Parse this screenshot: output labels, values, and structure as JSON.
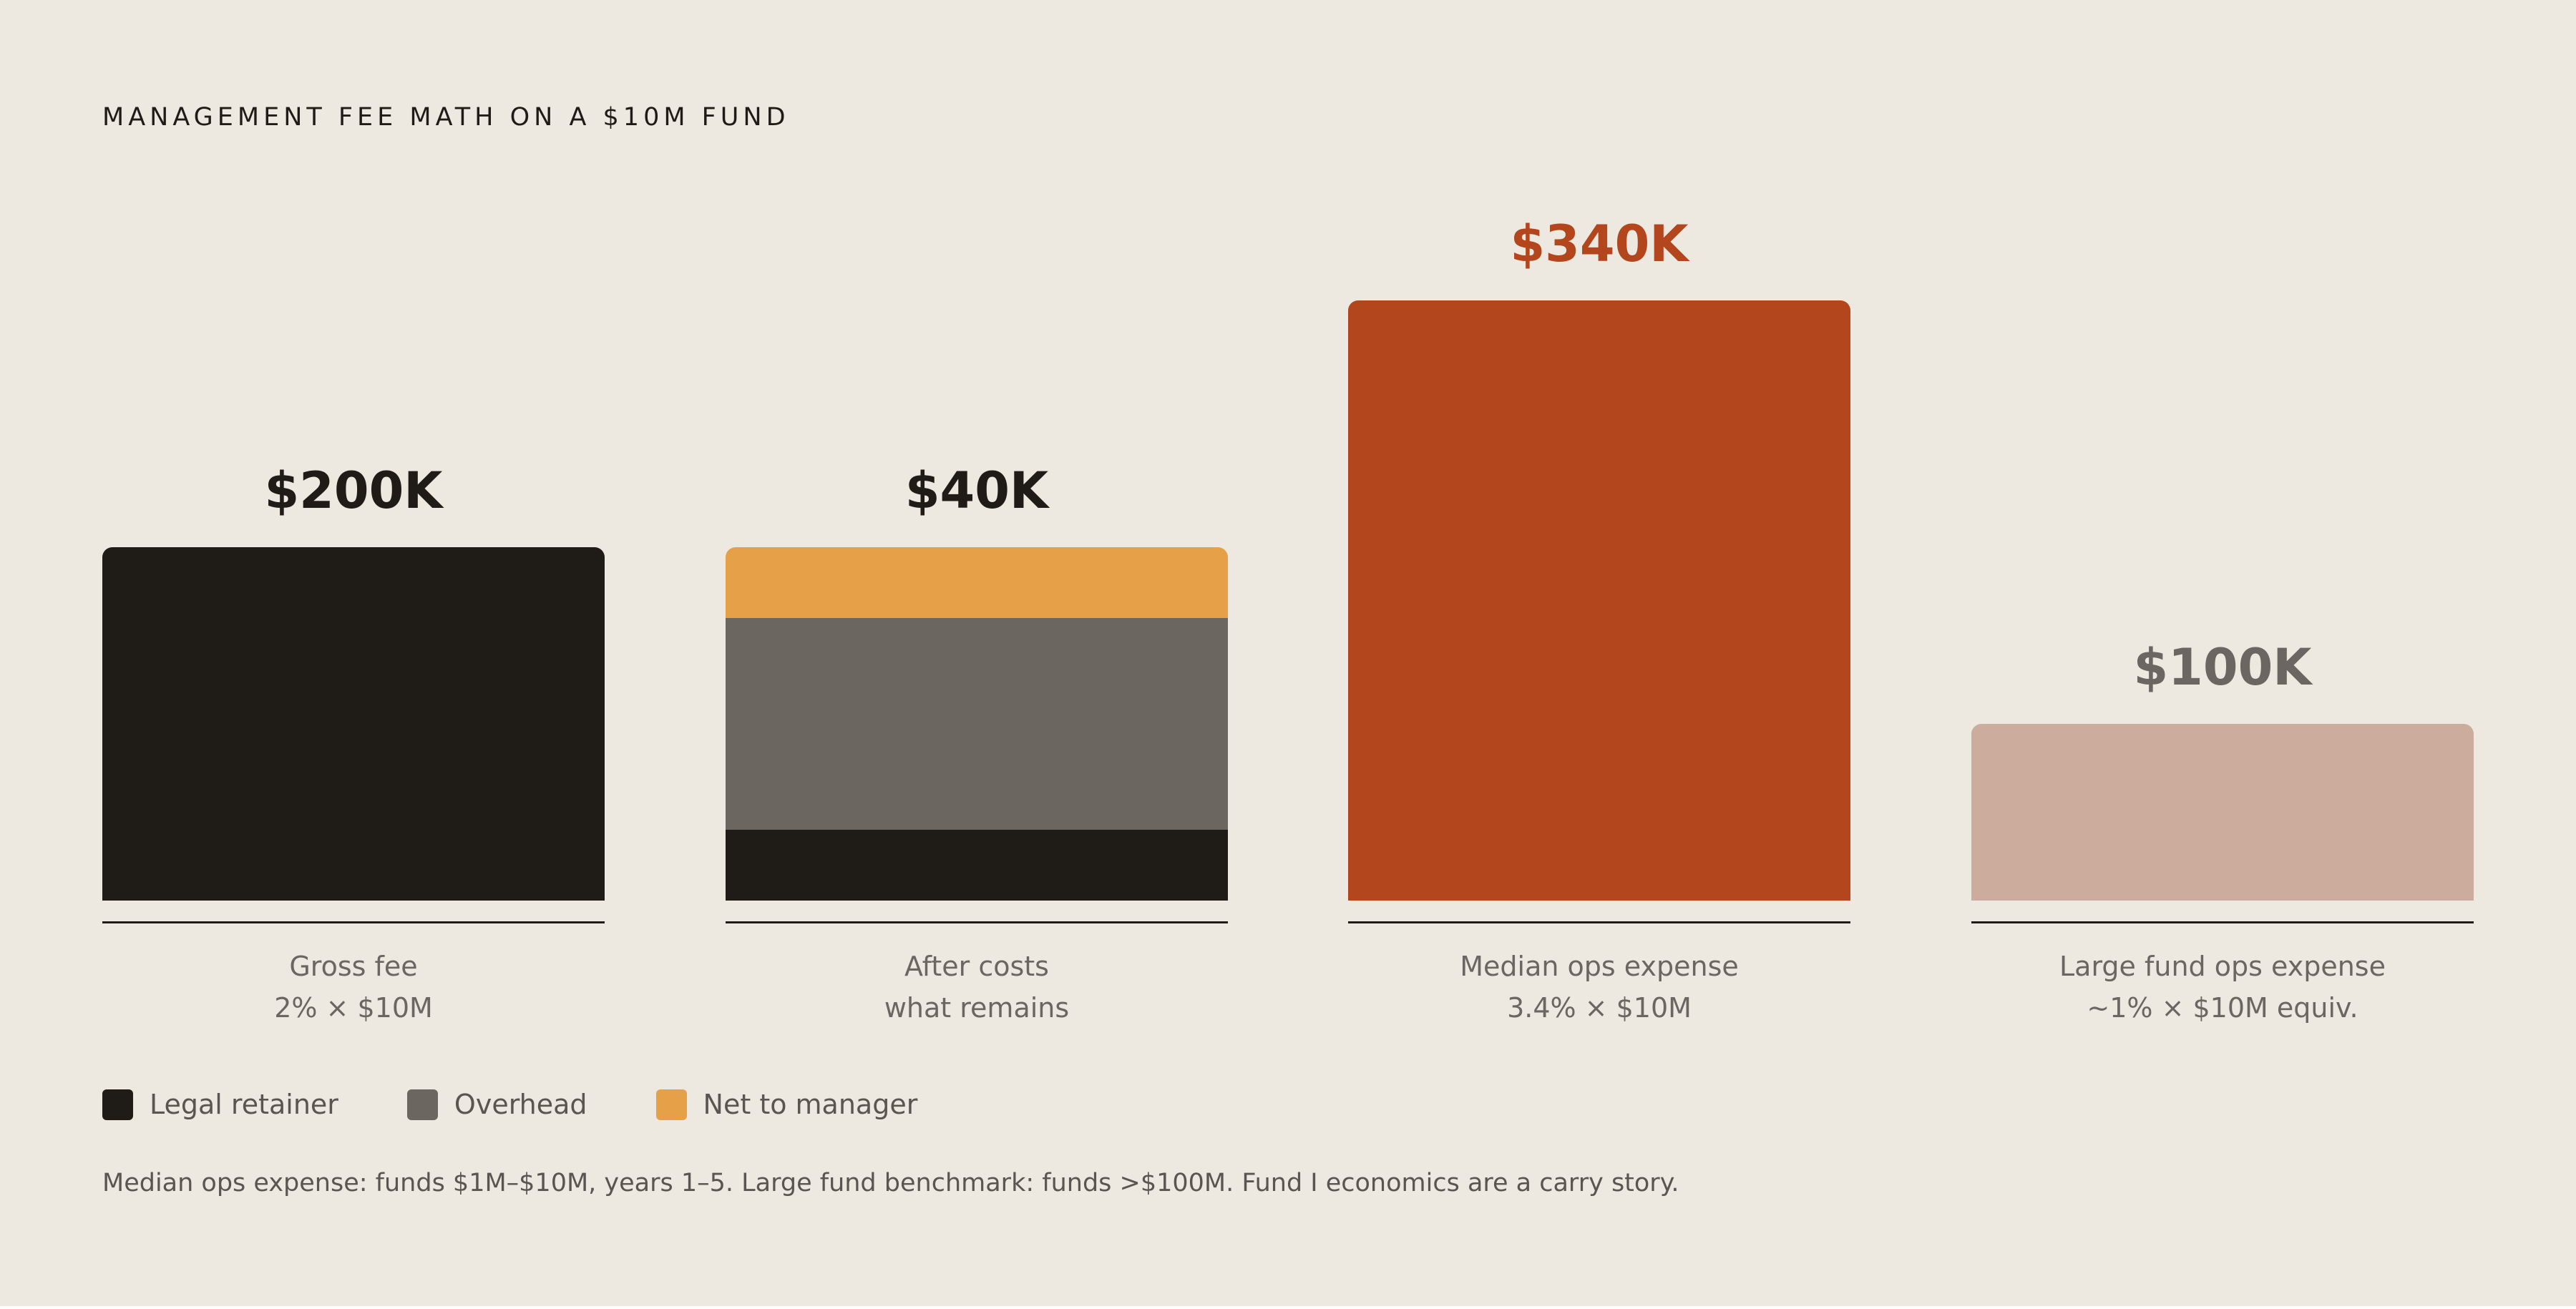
{
  "title": "MANAGEMENT FEE MATH ON A $10M FUND",
  "colors": {
    "background": "#ede9e1",
    "legal_retainer": "#1f1c18",
    "overhead": "#6b6760",
    "net_to_manager": "#e6a048",
    "median_ops": "#b3461c",
    "large_fund_ops": "#ccac9c",
    "label_dark": "#1f1c18",
    "label_accent": "#b3461c",
    "label_muted": "#6b6661"
  },
  "chart_data": {
    "type": "bar",
    "unit": "$K",
    "categories": [
      "Gross fee 2% × $10M",
      "After costs what remains",
      "Median ops expense 3.4% × $10M",
      "Large fund ops expense ~1% × $10M equiv."
    ],
    "bars": [
      {
        "value_label": "$200K",
        "label_line1": "Gross fee",
        "label_line2": "2% × $10M",
        "label_color": "#1f1c18",
        "segments": [
          {
            "series": "Legal retainer",
            "value": 200,
            "color": "#1f1c18"
          }
        ]
      },
      {
        "value_label": "$40K",
        "label_line1": "After costs",
        "label_line2": "what remains",
        "label_color": "#1f1c18",
        "segments": [
          {
            "series": "Legal retainer",
            "value": 40,
            "color": "#1f1c18"
          },
          {
            "series": "Overhead",
            "value": 120,
            "color": "#6b6760"
          },
          {
            "series": "Net to manager",
            "value": 40,
            "color": "#e6a048"
          }
        ]
      },
      {
        "value_label": "$340K",
        "label_line1": "Median ops expense",
        "label_line2": "3.4% × $10M",
        "label_color": "#b3461c",
        "segments": [
          {
            "series": "Median ops expense",
            "value": 340,
            "color": "#b3461c"
          }
        ]
      },
      {
        "value_label": "$100K",
        "label_line1": "Large fund ops expense",
        "label_line2": "~1% × $10M equiv.",
        "label_color": "#6b6661",
        "segments": [
          {
            "series": "Large fund ops expense",
            "value": 100,
            "color": "#ccac9c"
          }
        ]
      }
    ],
    "ylim": [
      0,
      340
    ],
    "grid": false,
    "legend_position": "bottom-left",
    "legend": [
      {
        "name": "Legal retainer",
        "color": "#1f1c18"
      },
      {
        "name": "Overhead",
        "color": "#6b6760"
      },
      {
        "name": "Net to manager",
        "color": "#e6a048"
      }
    ]
  },
  "footnote": "Median ops expense: funds $1M–$10M, years 1–5. Large fund benchmark: funds >$100M. Fund I economics are a carry story."
}
